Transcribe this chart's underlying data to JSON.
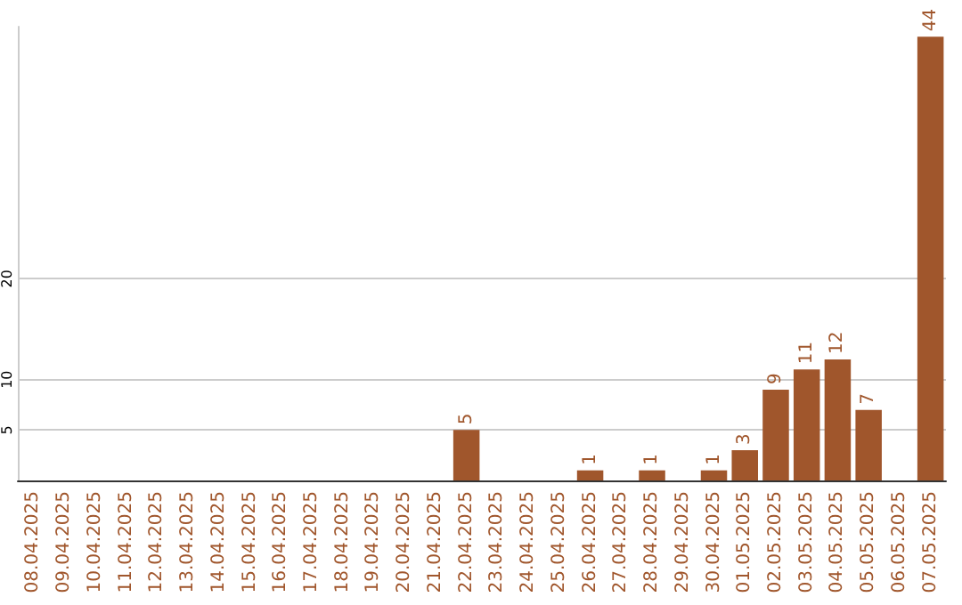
{
  "chart_data": {
    "type": "bar",
    "categories": [
      "08.04.2025",
      "09.04.2025",
      "10.04.2025",
      "11.04.2025",
      "12.04.2025",
      "13.04.2025",
      "14.04.2025",
      "15.04.2025",
      "16.04.2025",
      "17.04.2025",
      "18.04.2025",
      "19.04.2025",
      "20.04.2025",
      "21.04.2025",
      "22.04.2025",
      "23.04.2025",
      "24.04.2025",
      "25.04.2025",
      "26.04.2025",
      "27.04.2025",
      "28.04.2025",
      "29.04.2025",
      "30.04.2025",
      "01.05.2025",
      "02.05.2025",
      "03.05.2025",
      "04.05.2025",
      "05.05.2025",
      "06.05.2025",
      "07.05.2025"
    ],
    "values": [
      0,
      0,
      0,
      0,
      0,
      0,
      0,
      0,
      0,
      0,
      0,
      0,
      0,
      0,
      5,
      0,
      0,
      0,
      1,
      0,
      1,
      0,
      1,
      3,
      9,
      11,
      12,
      7,
      0,
      44
    ],
    "value_labels": [
      null,
      null,
      null,
      null,
      null,
      null,
      null,
      null,
      null,
      null,
      null,
      null,
      null,
      null,
      "5",
      null,
      null,
      null,
      "1",
      null,
      "1",
      null,
      "1",
      "3",
      "9",
      "11",
      "12",
      "7",
      null,
      "44"
    ],
    "color": "#a0562c",
    "ylim": [
      0,
      45
    ],
    "yticks": [
      5,
      10,
      20
    ],
    "grid": "y"
  }
}
